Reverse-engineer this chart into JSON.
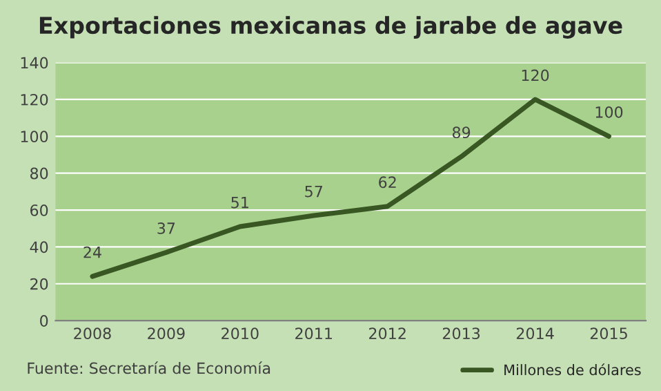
{
  "chart_data": {
    "type": "line",
    "title": "Exportaciones mexicanas de jarabe de agave",
    "categories": [
      "2008",
      "2009",
      "2010",
      "2011",
      "2012",
      "2013",
      "2014",
      "2015"
    ],
    "series": [
      {
        "name": "Millones de dólares",
        "color": "#385723",
        "values": [
          24,
          37,
          51,
          57,
          62,
          89,
          120,
          100
        ]
      }
    ],
    "ylim": [
      0,
      140
    ],
    "yticks": [
      0,
      20,
      40,
      60,
      80,
      100,
      120,
      140
    ],
    "grid": "y",
    "legend": "bottom right",
    "data_labels": true,
    "marker": "none",
    "line_style": "solid",
    "annotations": [
      "Fuente: Secretaría de Economía"
    ]
  }
}
